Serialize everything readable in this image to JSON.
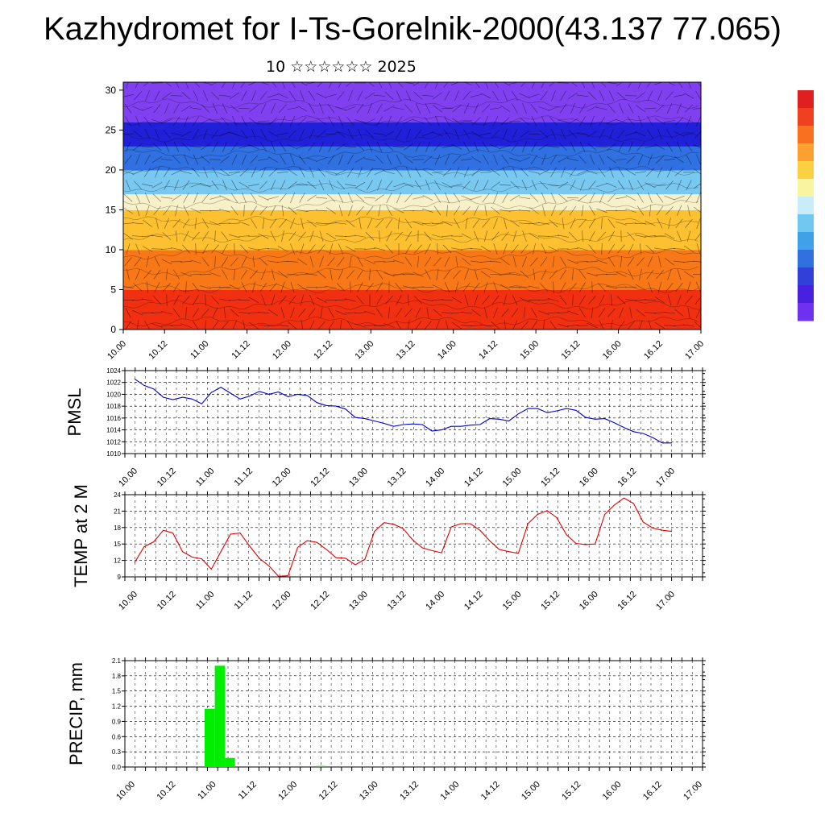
{
  "title": "Kazhydromet for I-Ts-Gorelnik-2000(43.137 77.065)",
  "subtitle": "10 ☆☆☆☆☆☆ 2025",
  "time_labels": [
    "10.00",
    "10.12",
    "11.00",
    "11.12",
    "12.00",
    "12.12",
    "13.00",
    "13.12",
    "14.00",
    "14.12",
    "15.00",
    "15.12",
    "16.00",
    "16.12",
    "17.00"
  ],
  "chart_data": [
    {
      "type": "heatmap",
      "title": "",
      "ylim": [
        0,
        31
      ],
      "y_ticks": [
        0,
        5,
        10,
        15,
        20,
        25,
        30
      ],
      "x_ticks": [
        "10.00",
        "10.12",
        "11.00",
        "11.12",
        "12.00",
        "12.12",
        "13.00",
        "13.12",
        "14.00",
        "14.12",
        "15.00",
        "15.12",
        "16.00",
        "16.12",
        "17.00"
      ],
      "layers": [
        {
          "level_range": [
            0,
            5
          ],
          "color": "#f03010"
        },
        {
          "level_range": [
            5,
            10
          ],
          "color": "#f87818"
        },
        {
          "level_range": [
            10,
            15
          ],
          "color": "#fcc030"
        },
        {
          "level_range": [
            15,
            17
          ],
          "color": "#f8f0c8"
        },
        {
          "level_range": [
            17,
            20
          ],
          "color": "#78c8f0"
        },
        {
          "level_range": [
            20,
            23
          ],
          "color": "#3070e0"
        },
        {
          "level_range": [
            23,
            26
          ],
          "color": "#2020d8"
        },
        {
          "level_range": [
            26,
            31
          ],
          "color": "#8040f0"
        }
      ],
      "colorbar": [
        "#e02020",
        "#f04020",
        "#f87020",
        "#fca030",
        "#fcd040",
        "#f8f4a0",
        "#c8ecf8",
        "#70c8f0",
        "#40a0e8",
        "#3070e0",
        "#3040d8",
        "#4820e0",
        "#7030f0"
      ]
    },
    {
      "type": "line",
      "ylabel": "PMSL",
      "ylim": [
        1010,
        1024
      ],
      "y_ticks": [
        1010,
        1012,
        1014,
        1016,
        1018,
        1020,
        1022,
        1024
      ],
      "x_ticks": [
        "10.00",
        "10.12",
        "11.00",
        "11.12",
        "12.00",
        "12.12",
        "13.00",
        "13.12",
        "14.00",
        "14.12",
        "15.00",
        "15.12",
        "16.00",
        "16.12",
        "17.00"
      ],
      "series": [
        {
          "color": "#0000cc",
          "values": [
            1022.6,
            1021.5,
            1020.9,
            1019.5,
            1019.1,
            1019.5,
            1019.2,
            1018.4,
            1020.3,
            1021.2,
            1020.2,
            1019.2,
            1019.7,
            1020.5,
            1020.0,
            1020.4,
            1019.6,
            1020.0,
            1019.8,
            1018.6,
            1018.1,
            1018.0,
            1017.5,
            1016.1,
            1015.9,
            1015.5,
            1015.1,
            1014.6,
            1014.9,
            1015.0,
            1014.9,
            1013.8,
            1014.0,
            1014.6,
            1014.6,
            1014.8,
            1014.9,
            1015.9,
            1015.8,
            1015.5,
            1016.7,
            1017.6,
            1017.6,
            1016.9,
            1017.2,
            1017.6,
            1017.3,
            1016.1,
            1015.8,
            1015.9,
            1015.2,
            1014.4,
            1013.7,
            1013.4,
            1012.7,
            1011.8,
            1011.8
          ]
        }
      ]
    },
    {
      "type": "line",
      "ylabel": "TEMP at 2 M",
      "ylim": [
        9,
        24
      ],
      "y_ticks": [
        9,
        12,
        15,
        18,
        21,
        24
      ],
      "x_ticks": [
        "10.00",
        "10.12",
        "11.00",
        "11.12",
        "12.00",
        "12.12",
        "13.00",
        "13.12",
        "14.00",
        "14.12",
        "15.00",
        "15.12",
        "16.00",
        "16.12",
        "17.00"
      ],
      "series": [
        {
          "color": "#dd0000",
          "values": [
            11.6,
            14.5,
            15.4,
            17.5,
            17.0,
            13.6,
            12.6,
            12.3,
            10.4,
            13.6,
            16.8,
            17.0,
            14.6,
            12.4,
            11.0,
            9.1,
            9.2,
            14.4,
            15.6,
            15.3,
            14.0,
            12.5,
            12.4,
            11.2,
            12.2,
            17.3,
            18.9,
            18.6,
            17.8,
            15.7,
            14.3,
            13.8,
            13.4,
            18.1,
            18.7,
            18.7,
            17.5,
            15.6,
            14.0,
            13.6,
            13.3,
            18.7,
            20.4,
            21.1,
            19.8,
            16.7,
            15.1,
            14.9,
            15.0,
            20.4,
            22.1,
            23.4,
            22.4,
            19.0,
            17.9,
            17.5,
            17.3
          ]
        }
      ]
    },
    {
      "type": "bar",
      "ylabel": "PRECIP, mm",
      "ylim": [
        0,
        2.1
      ],
      "y_ticks": [
        "0.0",
        "0.3",
        "0.6",
        "0.9",
        "1.2",
        "1.5",
        "1.8",
        "2.1"
      ],
      "x_ticks": [
        "10.00",
        "10.12",
        "11.00",
        "11.12",
        "12.00",
        "12.12",
        "13.00",
        "13.12",
        "14.00",
        "14.12",
        "15.00",
        "15.12",
        "16.00",
        "16.12",
        "17.00"
      ],
      "series": [
        {
          "color": "#00ee00",
          "bars": [
            {
              "index": 8,
              "value": 1.15
            },
            {
              "index": 9,
              "value": 2.0
            },
            {
              "index": 10,
              "value": 0.18
            },
            {
              "index": 19,
              "value": 0.02
            }
          ]
        }
      ]
    }
  ]
}
